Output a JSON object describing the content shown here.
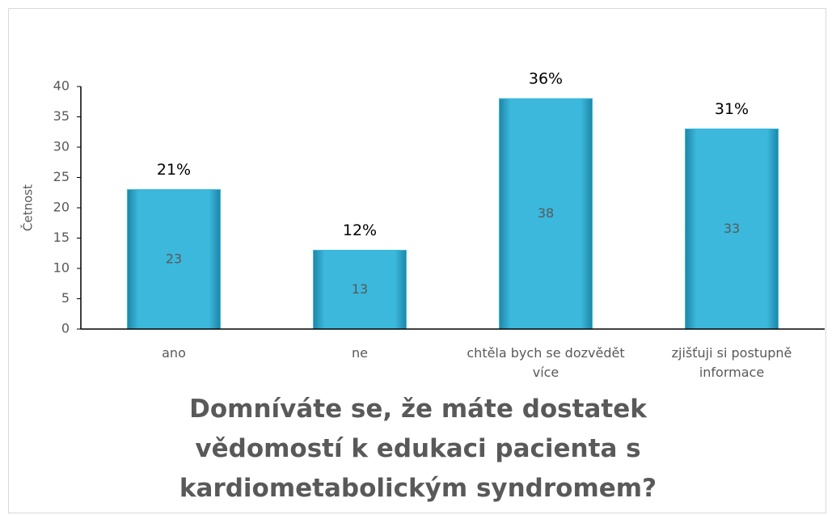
{
  "chart_data": {
    "type": "bar",
    "title": "Domníváte se, že máte dostatek vědomostí k edukaci pacienta s kardiometabolickým syndromem?",
    "y_label": "Četnost",
    "categories": [
      "ano",
      "ne",
      "chtěla bych se dozvědět více",
      "zjišťuji si postupně informace"
    ],
    "values": [
      23,
      13,
      38,
      33
    ],
    "annotations": [
      "21%",
      "12%",
      "36%",
      "31%"
    ],
    "color": "#3bb8dc",
    "ylim": [
      0,
      40
    ],
    "yticks": [
      0,
      5,
      10,
      15,
      20,
      25,
      30,
      35,
      40
    ],
    "grid": false
  }
}
